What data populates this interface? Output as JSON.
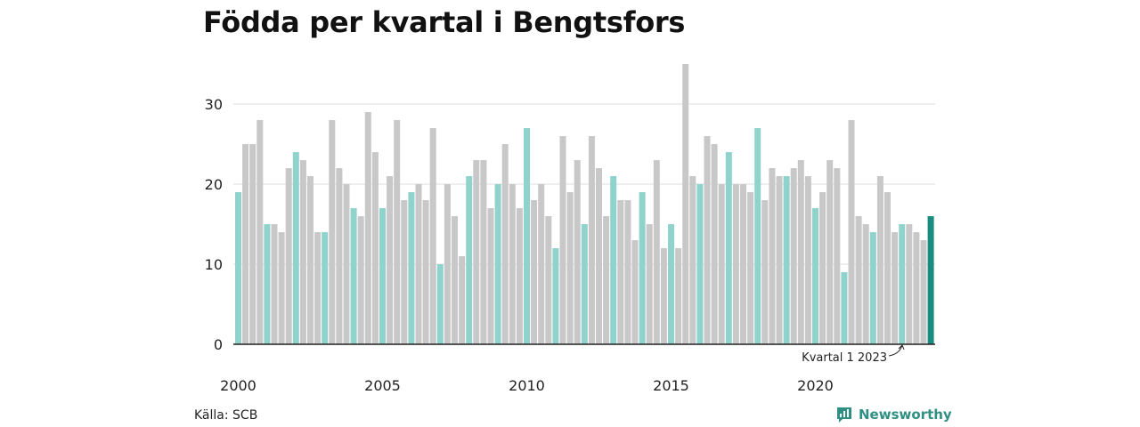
{
  "chart_data": {
    "type": "bar",
    "title": "Födda per kvartal i Bengtsfors",
    "xlabel": "",
    "ylabel": "",
    "ylim": [
      0,
      35
    ],
    "yticks": [
      0,
      10,
      20,
      30
    ],
    "xticks": [
      "2000",
      "2005",
      "2010",
      "2015",
      "2020"
    ],
    "grid": true,
    "first_quarter": "2000 Q1",
    "values": [
      19,
      25,
      25,
      28,
      15,
      15,
      14,
      22,
      24,
      23,
      21,
      14,
      14,
      28,
      22,
      20,
      17,
      16,
      29,
      24,
      17,
      21,
      28,
      18,
      19,
      20,
      18,
      27,
      10,
      20,
      16,
      11,
      21,
      23,
      23,
      17,
      20,
      25,
      20,
      17,
      27,
      18,
      20,
      16,
      12,
      26,
      19,
      23,
      15,
      26,
      22,
      16,
      21,
      18,
      18,
      13,
      19,
      15,
      23,
      12,
      15,
      12,
      35,
      21,
      20,
      26,
      25,
      20,
      24,
      20,
      20,
      19,
      27,
      18,
      22,
      21,
      21,
      22,
      23,
      21,
      17,
      19,
      23,
      22,
      9,
      28,
      16,
      15,
      14,
      21,
      19,
      14,
      15,
      15,
      14,
      13,
      16
    ],
    "annotation": "Kvartal 1 2023",
    "colors": {
      "q1": "#8fd3cc",
      "other": "#c8c8c8",
      "highlight": "#1a8c7f",
      "grid": "#dddddd",
      "baseline": "#222222"
    }
  },
  "footer": {
    "source": "Källa: SCB",
    "brand": "Newsworthy"
  }
}
